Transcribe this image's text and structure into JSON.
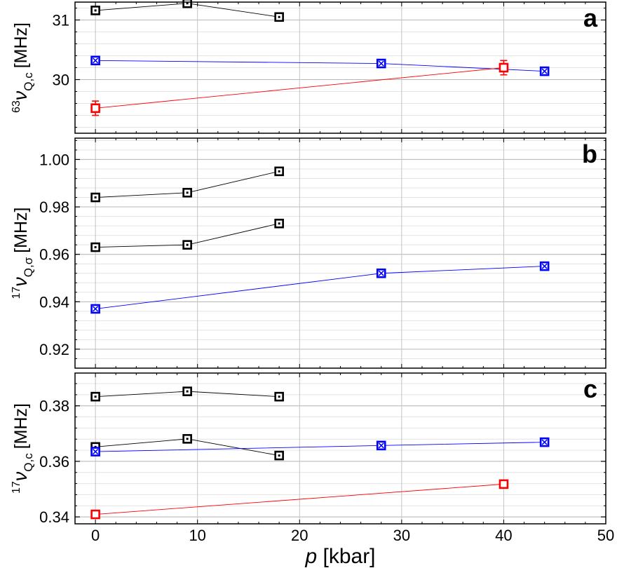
{
  "chart_data": [
    {
      "type": "line",
      "panel_label": "a",
      "ylabel": {
        "sup": "63",
        "nu": "ν",
        "sub": "Q,c",
        "unit": "[MHz]"
      },
      "xlim": [
        -2,
        50
      ],
      "ylim": [
        29.1,
        31.3
      ],
      "yticks": [
        30,
        31
      ],
      "yticklabels": [
        "30",
        "31"
      ],
      "grid": true,
      "series": [
        {
          "color": "#000000",
          "marker": "square-dot",
          "x": [
            0,
            9,
            18
          ],
          "y": [
            31.16,
            31.28,
            31.05
          ]
        },
        {
          "color": "#0000ff",
          "marker": "square-cross",
          "x": [
            0,
            28,
            44
          ],
          "y": [
            30.32,
            30.27,
            30.14
          ]
        },
        {
          "color": "#ff0000",
          "marker": "square",
          "x": [
            0,
            40
          ],
          "y": [
            29.52,
            30.2
          ],
          "yerr": [
            0.12,
            0.12
          ]
        }
      ]
    },
    {
      "type": "line",
      "panel_label": "b",
      "ylabel": {
        "sup": "17",
        "nu": "ν",
        "sub": "Q,σ",
        "unit": "[MHz]"
      },
      "xlim": [
        -2,
        50
      ],
      "ylim": [
        0.912,
        1.009
      ],
      "yticks": [
        0.92,
        0.94,
        0.96,
        0.98,
        1.0
      ],
      "yticklabels": [
        "0.92",
        "0.94",
        "0.96",
        "0.98",
        "1.00"
      ],
      "grid": true,
      "series": [
        {
          "color": "#000000",
          "marker": "square-dot",
          "x": [
            0,
            9,
            18
          ],
          "y": [
            0.984,
            0.986,
            0.995
          ]
        },
        {
          "color": "#000000",
          "marker": "square-dot",
          "x": [
            0,
            9,
            18
          ],
          "y": [
            0.963,
            0.964,
            0.973
          ]
        },
        {
          "color": "#0000ff",
          "marker": "square-cross",
          "x": [
            0,
            28,
            44
          ],
          "y": [
            0.937,
            0.952,
            0.955
          ]
        }
      ]
    },
    {
      "type": "line",
      "panel_label": "c",
      "ylabel": {
        "sup": "17",
        "nu": "ν",
        "sub": "Q,c",
        "unit": "[MHz]"
      },
      "xlim": [
        -2,
        50
      ],
      "xlabel": {
        "var": "p",
        "unit": " [kbar]"
      },
      "ylim": [
        0.3375,
        0.3918
      ],
      "yticks": [
        0.34,
        0.36,
        0.38
      ],
      "yticklabels": [
        "0.34",
        "0.36",
        "0.38"
      ],
      "xticks": [
        0,
        10,
        20,
        30,
        40,
        50
      ],
      "xticklabels": [
        "0",
        "10",
        "20",
        "30",
        "40",
        "50"
      ],
      "grid": true,
      "series": [
        {
          "color": "#000000",
          "marker": "square-dot",
          "x": [
            0,
            9,
            18
          ],
          "y": [
            0.3833,
            0.3852,
            0.3833
          ]
        },
        {
          "color": "#000000",
          "marker": "square-dot",
          "x": [
            0,
            9,
            18
          ],
          "y": [
            0.3652,
            0.3681,
            0.3621
          ]
        },
        {
          "color": "#0000ff",
          "marker": "square-cross",
          "x": [
            0,
            28,
            44
          ],
          "y": [
            0.3635,
            0.3657,
            0.3669
          ]
        },
        {
          "color": "#ff0000",
          "marker": "square",
          "x": [
            0,
            40
          ],
          "y": [
            0.3409,
            0.3518
          ]
        }
      ]
    }
  ]
}
